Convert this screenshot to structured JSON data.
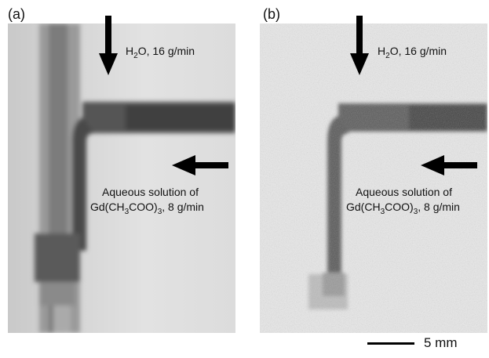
{
  "panels": [
    {
      "label": "(a)",
      "flow_top_prefix": "H",
      "flow_top_sub": "2",
      "flow_top_suffix": "O, 16 g/min",
      "flow_side_line1": "Aqueous solution of",
      "flow_side_prefix": "Gd(CH",
      "flow_side_sub1": "3",
      "flow_side_mid": "COO)",
      "flow_side_sub2": "3",
      "flow_side_suffix": ", 8 g/min"
    },
    {
      "label": "(b)",
      "flow_top_prefix": "H",
      "flow_top_sub": "2",
      "flow_top_suffix": "O, 16 g/min",
      "flow_side_line1": "Aqueous solution of",
      "flow_side_prefix": "Gd(CH",
      "flow_side_sub1": "3",
      "flow_side_mid": "COO)",
      "flow_side_sub2": "3",
      "flow_side_suffix": ", 8 g/min"
    }
  ],
  "scale_bar": {
    "label": "5 mm"
  },
  "colors": {
    "arrow": "#000000",
    "background_a": "#dedede",
    "background_b": "#e9e9e9"
  }
}
